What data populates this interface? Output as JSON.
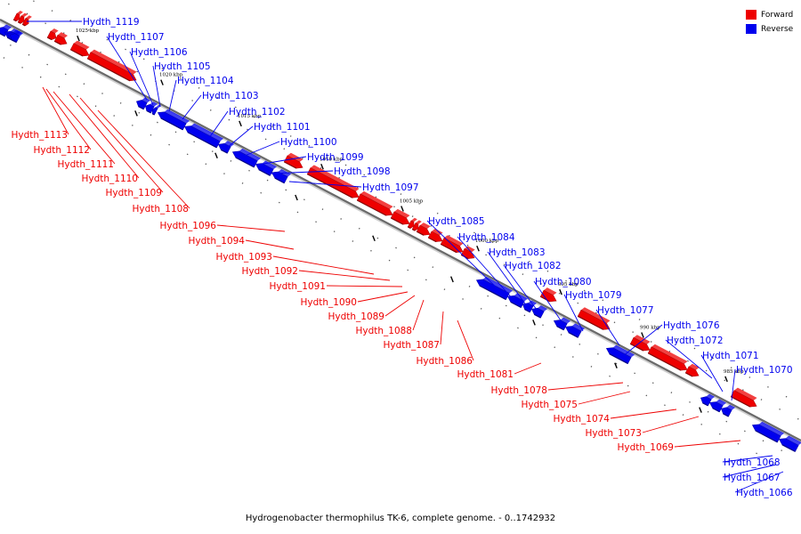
{
  "caption": "Hydrogenobacter thermophilus TK-6, complete genome. - 0..1742932",
  "legend": {
    "forward": {
      "label": "Forward",
      "color": "#ee0000"
    },
    "reverse": {
      "label": "Reverse",
      "color": "#0000ee"
    }
  },
  "tick_labels": [
    "1025 kbp",
    "1020 kbp",
    "1015 kbp",
    "1010 kbp",
    "1005 kbp",
    "1000 kbp",
    "995 kbp",
    "990 kbp",
    "985 kbp"
  ],
  "genes_reverse": [
    "Hydth_1119",
    "Hydth_1107",
    "Hydth_1106",
    "Hydth_1105",
    "Hydth_1104",
    "Hydth_1103",
    "Hydth_1102",
    "Hydth_1101",
    "Hydth_1100",
    "Hydth_1099",
    "Hydth_1098",
    "Hydth_1097",
    "Hydth_1085",
    "Hydth_1084",
    "Hydth_1083",
    "Hydth_1082",
    "Hydth_1080",
    "Hydth_1079",
    "Hydth_1077",
    "Hydth_1076",
    "Hydth_1072",
    "Hydth_1071",
    "Hydth_1070",
    "Hydth_1068",
    "Hydth_1067",
    "Hydth_1066"
  ],
  "genes_forward": [
    "Hydth_1113",
    "Hydth_1112",
    "Hydth_1111",
    "Hydth_1110",
    "Hydth_1109",
    "Hydth_1108",
    "Hydth_1096",
    "Hydth_1094",
    "Hydth_1093",
    "Hydth_1092",
    "Hydth_1091",
    "Hydth_1090",
    "Hydth_1089",
    "Hydth_1088",
    "Hydth_1087",
    "Hydth_1086",
    "Hydth_1081",
    "Hydth_1078",
    "Hydth_1075",
    "Hydth_1074",
    "Hydth_1073",
    "Hydth_1069"
  ]
}
